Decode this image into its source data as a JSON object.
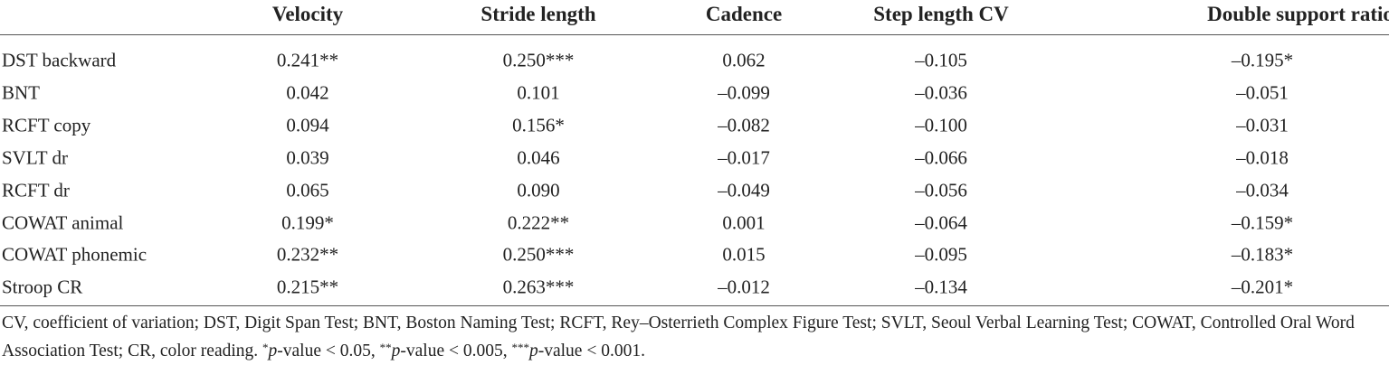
{
  "table": {
    "header": [
      "",
      "Velocity",
      "Stride length",
      "Cadence",
      "Step length CV",
      "Double support ratio"
    ],
    "rows": [
      [
        "DST backward",
        "0.241**",
        "0.250***",
        "0.062",
        "–0.105",
        "–0.195*"
      ],
      [
        "BNT",
        "0.042",
        "0.101",
        "–0.099",
        "–0.036",
        "–0.051"
      ],
      [
        "RCFT copy",
        "0.094",
        "0.156*",
        "–0.082",
        "–0.100",
        "–0.031"
      ],
      [
        "SVLT dr",
        "0.039",
        "0.046",
        "–0.017",
        "–0.066",
        "–0.018"
      ],
      [
        "RCFT dr",
        "0.065",
        "0.090",
        "–0.049",
        "–0.056",
        "–0.034"
      ],
      [
        "COWAT animal",
        "0.199*",
        "0.222**",
        "0.001",
        "–0.064",
        "–0.159*"
      ],
      [
        "COWAT phonemic",
        "0.232**",
        "0.250***",
        "0.015",
        "–0.095",
        "–0.183*"
      ],
      [
        "Stroop CR",
        "0.215**",
        "0.263***",
        "–0.012",
        "–0.134",
        "–0.201*"
      ]
    ]
  },
  "footnote": [
    {
      "text": "CV, coefficient of variation; DST, Digit Span Test; BNT, Boston Naming Test; RCFT, Rey–Osterrieth Complex Figure Test; SVLT, Seoul Verbal Learning Test; COWAT, Controlled Oral Word Association Test; CR, color reading. "
    },
    {
      "text": "*",
      "style": "sup"
    },
    {
      "text": "p",
      "style": "italic"
    },
    {
      "text": "-value < 0.05, "
    },
    {
      "text": "**",
      "style": "sup"
    },
    {
      "text": "p",
      "style": "italic"
    },
    {
      "text": "-value < 0.005, "
    },
    {
      "text": "***",
      "style": "sup"
    },
    {
      "text": "p",
      "style": "italic"
    },
    {
      "text": "-value < 0.001."
    }
  ]
}
